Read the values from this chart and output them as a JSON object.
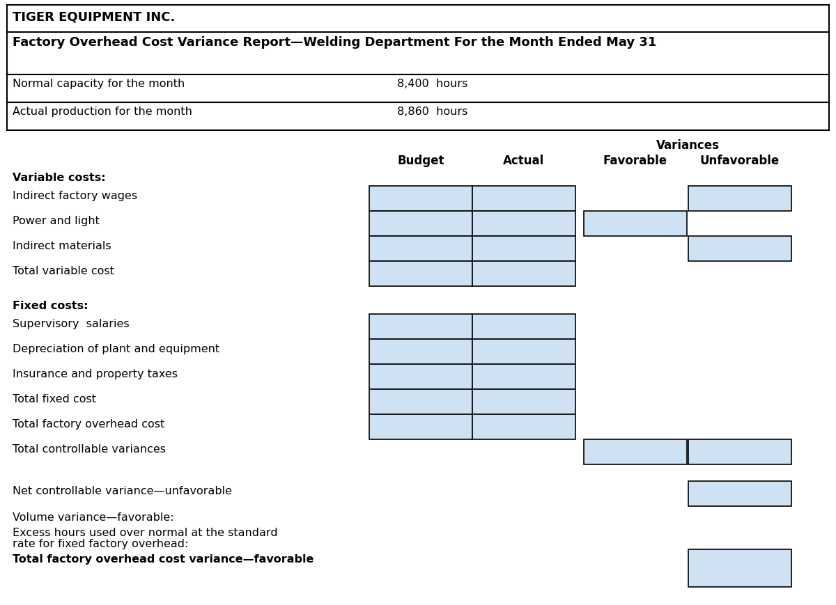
{
  "title_line1": "TIGER EQUIPMENT INC.",
  "title_line2": "Factory Overhead Cost Variance Report—Welding Department For the Month Ended May 31",
  "normal_capacity_label": "Normal capacity for the month",
  "normal_capacity_value": "8,400  hours",
  "actual_production_label": "Actual production for the month",
  "actual_production_value": "8,860  hours",
  "col_headers": [
    "Budget",
    "Actual",
    "Favorable",
    "Unfavorable"
  ],
  "variances_label": "Variances",
  "section_variable": "Variable costs:",
  "section_fixed": "Fixed costs:",
  "rows_variable": [
    "Indirect factory wages",
    "Power and light",
    "Indirect materials",
    "Total variable cost"
  ],
  "rows_fixed": [
    "Supervisory  salaries",
    "Depreciation of plant and equipment",
    "Insurance and property taxes",
    "Total fixed cost",
    "Total factory overhead cost",
    "Total controllable variances"
  ],
  "bottom_rows": [
    "Net controllable variance—unfavorable",
    "Volume variance—favorable:",
    "Excess hours used over normal at the standard",
    "rate for fixed factory overhead:",
    "Total factory overhead cost variance—favorable"
  ],
  "cell_color": "#cfe2f3",
  "border_color": "#000000",
  "bg_color": "#ffffff",
  "font_size": 11.5,
  "title_font_size": 13,
  "header_font_size": 12
}
